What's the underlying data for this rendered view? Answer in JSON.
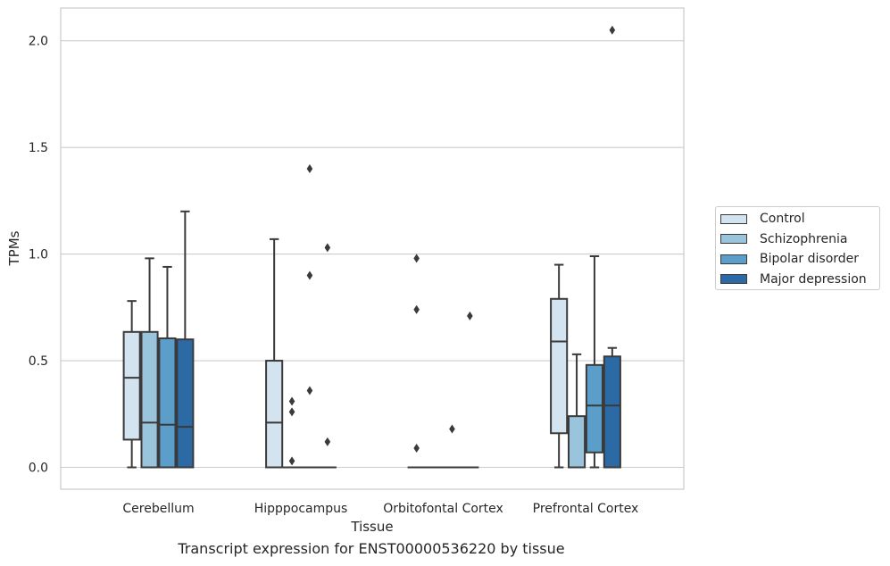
{
  "chart_data": {
    "type": "box",
    "title": "Transcript expression for ENST00000536220 by tissue",
    "xlabel": "Tissue",
    "ylabel": "TPMs",
    "ylim": [
      -0.1,
      2.15
    ],
    "yticks": [
      0.0,
      0.5,
      1.0,
      1.5,
      2.0
    ],
    "ytick_labels": [
      "0.0",
      "0.5",
      "1.0",
      "1.5",
      "2.0"
    ],
    "grid": "horizontal",
    "legend_position": "right",
    "categories": [
      "Cerebellum",
      "Hipppocampus",
      "Orbitofontal Cortex",
      "Prefrontal Cortex"
    ],
    "series": [
      {
        "name": "Control",
        "color": "#d4e3f0",
        "boxes": [
          {
            "min": 0.0,
            "q1": 0.13,
            "median": 0.42,
            "q3": 0.635,
            "max": 0.78,
            "outliers": []
          },
          {
            "min": 0.0,
            "q1": 0.0,
            "median": 0.21,
            "q3": 0.5,
            "max": 1.07,
            "outliers": []
          },
          {
            "min": 0.0,
            "q1": 0.0,
            "median": 0.0,
            "q3": 0.0,
            "max": 0.0,
            "outliers": [
              0.98,
              0.74,
              0.09
            ]
          },
          {
            "min": 0.0,
            "q1": 0.16,
            "median": 0.59,
            "q3": 0.79,
            "max": 0.95,
            "outliers": []
          }
        ]
      },
      {
        "name": "Schizophrenia",
        "color": "#9ac4dc",
        "boxes": [
          {
            "min": 0.0,
            "q1": 0.0,
            "median": 0.21,
            "q3": 0.635,
            "max": 0.98,
            "outliers": []
          },
          {
            "min": 0.0,
            "q1": 0.0,
            "median": 0.0,
            "q3": 0.0,
            "max": 0.0,
            "outliers": [
              0.31,
              0.26,
              0.03
            ]
          },
          {
            "min": 0.0,
            "q1": 0.0,
            "median": 0.0,
            "q3": 0.0,
            "max": 0.0,
            "outliers": []
          },
          {
            "min": 0.0,
            "q1": 0.0,
            "median": 0.0,
            "q3": 0.24,
            "max": 0.53,
            "outliers": []
          }
        ]
      },
      {
        "name": "Bipolar disorder",
        "color": "#5a9ec9",
        "boxes": [
          {
            "min": 0.0,
            "q1": 0.0,
            "median": 0.2,
            "q3": 0.605,
            "max": 0.94,
            "outliers": []
          },
          {
            "min": 0.0,
            "q1": 0.0,
            "median": 0.0,
            "q3": 0.0,
            "max": 0.0,
            "outliers": [
              1.4,
              0.9,
              0.36
            ]
          },
          {
            "min": 0.0,
            "q1": 0.0,
            "median": 0.0,
            "q3": 0.0,
            "max": 0.0,
            "outliers": [
              0.18
            ]
          },
          {
            "min": 0.0,
            "q1": 0.07,
            "median": 0.29,
            "q3": 0.48,
            "max": 0.99,
            "outliers": []
          }
        ]
      },
      {
        "name": "Major depression",
        "color": "#2c6aa5",
        "boxes": [
          {
            "min": 0.0,
            "q1": 0.0,
            "median": 0.19,
            "q3": 0.6,
            "max": 1.2,
            "outliers": []
          },
          {
            "min": 0.0,
            "q1": 0.0,
            "median": 0.0,
            "q3": 0.0,
            "max": 0.0,
            "outliers": [
              1.03,
              0.12
            ]
          },
          {
            "min": 0.0,
            "q1": 0.0,
            "median": 0.0,
            "q3": 0.0,
            "max": 0.0,
            "outliers": [
              0.71
            ]
          },
          {
            "min": 0.0,
            "q1": 0.0,
            "median": 0.29,
            "q3": 0.52,
            "max": 0.56,
            "outliers": [
              2.05
            ]
          }
        ]
      }
    ]
  }
}
